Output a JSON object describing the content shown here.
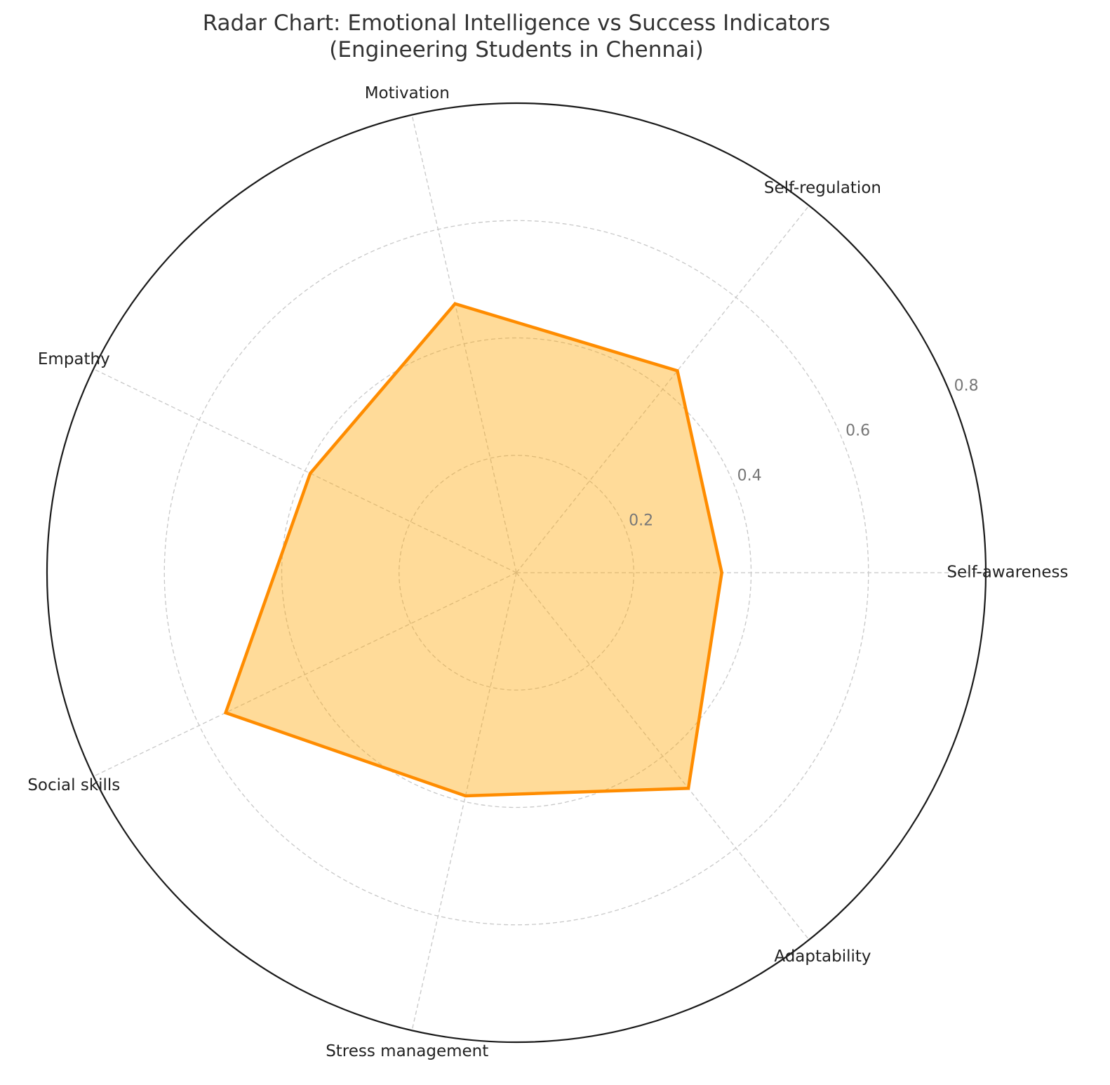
{
  "chart_data": {
    "type": "radar",
    "title": "Radar Chart: Emotional Intelligence vs Success Indicators\n(Engineering Students in Chennai)",
    "categories": [
      "Self-awareness",
      "Self-regulation",
      "Motivation",
      "Empathy",
      "Social skills",
      "Stress management",
      "Adaptability"
    ],
    "values": [
      0.35,
      0.44,
      0.47,
      0.39,
      0.55,
      0.39,
      0.47
    ],
    "color": "#ff8c00",
    "fill": "#ffa500",
    "ylim": [
      0,
      0.8
    ],
    "yticks": [
      0.2,
      0.4,
      0.6,
      0.8
    ],
    "grid": true
  }
}
